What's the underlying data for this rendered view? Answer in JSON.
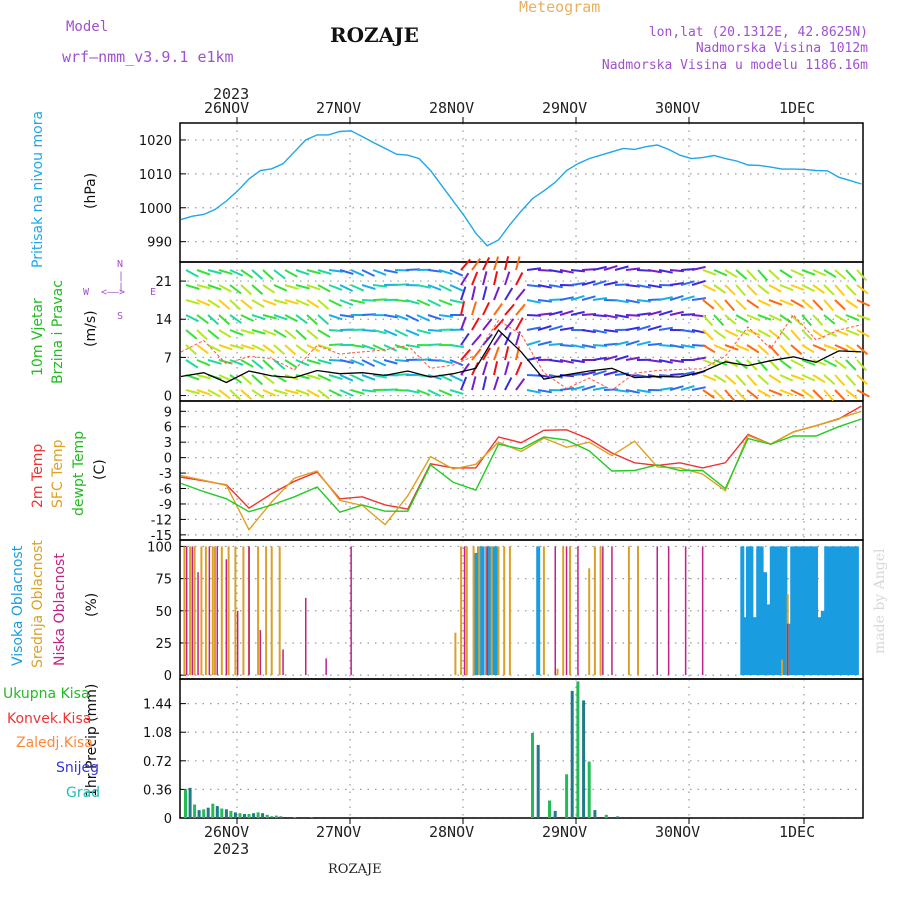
{
  "header": {
    "model_label": "Model",
    "model_name": "wrf–nmm_v3.9.1  e1km",
    "station": "ROZAJE",
    "meteogram": "Meteogram",
    "lonlat": "lon,lat (20.1312E, 42.8625N)",
    "elevation": "Nadmorska Visina 1012m",
    "model_elevation": "Nadmorska Visina u modelu 1186.16m",
    "watermark": "made by Angel",
    "footer": "ROZAJE"
  },
  "time_axis": {
    "year": "2023",
    "days": [
      "26NOV",
      "27NOV",
      "28NOV",
      "29NOV",
      "30NOV",
      "1DEC"
    ]
  },
  "colors": {
    "pressure": "#1ea7e8",
    "temp2m": "#ee3333",
    "sfc": "#e0a020",
    "dewpt": "#22cc22",
    "visoka": "#1a9de0",
    "srednja": "#d9a12a",
    "niska": "#c0208a",
    "wind_avg": "#000000",
    "gust": "#ff5544"
  },
  "labels": {
    "p1": [
      "Pritisak na nivou mora",
      "(hPa)"
    ],
    "p2": [
      "10m Vjetar",
      "Brzina i Pravac",
      "(m/s)"
    ],
    "p2_compass": {
      "n": "N",
      "s": "S",
      "w": "W",
      "e": "E"
    },
    "p3": [
      "2m Temp",
      "SFC Temp",
      "dewpt Temp",
      "(C)"
    ],
    "p4": [
      "Visoka Oblacnost",
      "Srednja Oblacnost",
      "Niska Oblacnost",
      "(%)"
    ],
    "p5_axis": "1hr Precip (mm)",
    "p5_legend": [
      {
        "text": "Ukupna Kisa",
        "color": "#22bb22"
      },
      {
        "text": "Konvek.Kisa",
        "color": "#ee3333"
      },
      {
        "text": "Zaledj.Kisa",
        "color": "#ff8833"
      },
      {
        "text": "Snijeg",
        "color": "#3333dd"
      },
      {
        "text": "Grad",
        "color": "#22bbbb"
      }
    ]
  },
  "chart_data": [
    {
      "type": "line",
      "title": "Pritisak na nivou mora",
      "ylabel": "(hPa)",
      "ylim": [
        984,
        1025
      ],
      "yticks": [
        990,
        1000,
        1010,
        1020
      ],
      "x": [
        0.0,
        0.1,
        0.2,
        0.3,
        0.4,
        0.5,
        0.6,
        0.7,
        0.8,
        0.9,
        1.0,
        1.1,
        1.2,
        1.3,
        1.4,
        1.5,
        1.6,
        1.7,
        1.8,
        1.9,
        2.0,
        2.1,
        2.2,
        2.3,
        2.4,
        2.5,
        2.6,
        2.7,
        2.8,
        2.9,
        3.0,
        3.1,
        3.2,
        3.3,
        3.4,
        3.5,
        3.6,
        3.7,
        3.8,
        3.9,
        4.0,
        4.1,
        4.2,
        4.3,
        4.4,
        4.5,
        4.6,
        4.7,
        4.8,
        4.9,
        5.0,
        5.1,
        5.2,
        5.3,
        5.4,
        5.5,
        5.6,
        5.7,
        5.8,
        5.9,
        6.0
      ],
      "values": [
        996.5,
        997.5,
        998,
        999.5,
        1002,
        1005,
        1008.5,
        1011,
        1011.5,
        1013,
        1016.5,
        1020,
        1021.5,
        1021.5,
        1022.5,
        1022.7,
        1021,
        1019.2,
        1017.5,
        1015.8,
        1015.5,
        1014.5,
        1011,
        1006.5,
        1002,
        997.5,
        992.5,
        988.8,
        990.5,
        995,
        999,
        1002.7,
        1005,
        1007.5,
        1011,
        1013,
        1014.5,
        1015.5,
        1016.5,
        1017.5,
        1017.2,
        1018,
        1018.5,
        1017.2,
        1015.5,
        1014.5,
        1014.8,
        1015.4,
        1014.5,
        1013.8,
        1012.6,
        1012.5,
        1012,
        1011.4,
        1011.4,
        1011.3,
        1011,
        1010.9,
        1009,
        1008,
        1007
      ]
    },
    {
      "type": "line",
      "title": "10m Vjetar Brzina i Pravac",
      "ylabel": "(m/s)",
      "ylim": [
        -1,
        24.5
      ],
      "yticks": [
        0,
        7,
        14,
        21
      ],
      "x": [
        0.0,
        0.2,
        0.4,
        0.6,
        0.8,
        1.0,
        1.2,
        1.4,
        1.6,
        1.8,
        2.0,
        2.2,
        2.4,
        2.6,
        2.8,
        3.0,
        3.2,
        3.4,
        3.6,
        3.8,
        4.0,
        4.2,
        4.4,
        4.6,
        4.8,
        5.0,
        5.2,
        5.4,
        5.6,
        5.8,
        6.0
      ],
      "series": [
        {
          "values": [
            3.5,
            4.2,
            2.4,
            4.5,
            3.6,
            3.3,
            4.6,
            4.0,
            4.2,
            3.7,
            4.5,
            3.4,
            4.0,
            5.0,
            12.0,
            8.0,
            3.0,
            3.8,
            4.5,
            5.0,
            3.3,
            3.5,
            3.4,
            4.4,
            6.2,
            5.5,
            6.4,
            7.1,
            6.1,
            8.2,
            8.0
          ]
        },
        {
          "values": [
            8.0,
            10.1,
            5.8,
            7.2,
            6.8,
            4.7,
            9.2,
            7.6,
            8.0,
            8.4,
            9.2,
            5.0,
            5.6,
            7.4,
            13.8,
            11.2,
            4.2,
            1.3,
            3.2,
            1.0,
            4.1,
            4.6,
            4.8,
            4.9,
            7.2,
            12.6,
            8.6,
            14.8,
            10.2,
            12.0,
            13.0
          ]
        }
      ]
    },
    {
      "type": "line",
      "title": "2m Temp / SFC Temp / dewpt Temp",
      "ylabel": "(C)",
      "ylim": [
        -16,
        11
      ],
      "yticks": [
        -15,
        -12,
        -9,
        -6,
        -3,
        0,
        3,
        6,
        9
      ],
      "x": [
        0.0,
        0.2,
        0.4,
        0.6,
        0.8,
        1.0,
        1.2,
        1.4,
        1.6,
        1.8,
        2.0,
        2.2,
        2.4,
        2.6,
        2.8,
        3.0,
        3.2,
        3.4,
        3.6,
        3.8,
        4.0,
        4.2,
        4.4,
        4.6,
        4.8,
        5.0,
        5.2,
        5.4,
        5.6,
        5.8,
        6.0
      ],
      "series": [
        {
          "name": "2m Temp",
          "values": [
            -3.8,
            -4.5,
            -5.3,
            -9.8,
            -7.0,
            -4.6,
            -2.8,
            -8.0,
            -7.6,
            -9.2,
            -10.0,
            -1.2,
            -2.0,
            -2.0,
            4.0,
            2.9,
            5.3,
            5.4,
            3.6,
            0.9,
            -1.0,
            -1.5,
            -1.0,
            -2.0,
            -1.0,
            4.5,
            2.6,
            5.0,
            6.2,
            7.5,
            10.0
          ]
        },
        {
          "name": "SFC Temp",
          "values": [
            -3.5,
            -4.4,
            -5.4,
            -14.0,
            -8.6,
            -4.0,
            -2.6,
            -8.3,
            -9.3,
            -13.0,
            -7.4,
            0.2,
            -2.2,
            -1.3,
            3.0,
            1.2,
            3.8,
            2.0,
            3.0,
            0.4,
            3.2,
            -1.8,
            -2.0,
            -3.2,
            -6.4,
            4.3,
            2.6,
            5.0,
            6.2,
            7.6,
            9.0
          ]
        },
        {
          "name": "dewpt Temp",
          "values": [
            -5.0,
            -6.6,
            -8.0,
            -10.5,
            -9.2,
            -7.6,
            -5.7,
            -10.6,
            -9.2,
            -10.4,
            -10.4,
            -1.4,
            -4.8,
            -6.3,
            2.6,
            1.7,
            4.0,
            3.4,
            1.3,
            -2.6,
            -2.5,
            -1.4,
            -2.5,
            -2.5,
            -6.0,
            3.7,
            2.6,
            4.2,
            4.2,
            6.0,
            7.5
          ]
        }
      ]
    },
    {
      "type": "bar",
      "title": "Visoka / Srednja / Niska Oblacnost",
      "ylabel": "(%)",
      "ylim": [
        -3,
        105
      ],
      "yticks": [
        0,
        25,
        50,
        75,
        100
      ],
      "series": [
        {
          "name": "Visoka Oblacnost",
          "x": [
            2.6,
            2.63,
            2.66,
            2.72,
            2.75,
            2.78,
            3.15,
            4.95,
            4.98,
            5.0,
            5.03,
            5.06,
            5.09,
            5.12,
            5.15,
            5.18,
            5.21,
            5.24,
            5.27,
            5.3,
            5.33,
            5.36,
            5.39,
            5.42,
            5.45,
            5.48,
            5.51,
            5.54,
            5.57,
            5.6,
            5.63,
            5.66,
            5.69,
            5.72,
            5.75,
            5.78,
            5.81,
            5.84,
            5.87,
            5.9,
            5.93,
            5.96
          ],
          "values": [
            95,
            100,
            100,
            100,
            100,
            100,
            100,
            100,
            45,
            100,
            100,
            45,
            100,
            100,
            80,
            55,
            100,
            100,
            100,
            100,
            100,
            40,
            100,
            100,
            100,
            100,
            100,
            100,
            100,
            100,
            45,
            50,
            100,
            100,
            100,
            100,
            100,
            100,
            100,
            100,
            100,
            100
          ]
        },
        {
          "name": "Srednja Oblacnost",
          "x": [
            0.03,
            0.08,
            0.12,
            0.18,
            0.22,
            0.28,
            0.3,
            0.36,
            0.42,
            0.48,
            0.55,
            0.6,
            0.68,
            0.75,
            0.8,
            0.87,
            2.42,
            2.47,
            2.52,
            2.58,
            2.63,
            2.69,
            2.74,
            2.8,
            2.85,
            2.9,
            3.2,
            3.32,
            3.37,
            3.43,
            3.6,
            3.65,
            3.7,
            3.95,
            4.03,
            5.3,
            5.35
          ],
          "values": [
            100,
            100,
            100,
            100,
            100,
            100,
            100,
            100,
            100,
            100,
            100,
            100,
            100,
            100,
            100,
            100,
            33,
            100,
            100,
            100,
            100,
            100,
            100,
            100,
            100,
            100,
            100,
            5,
            100,
            100,
            83,
            100,
            100,
            100,
            100,
            12,
            63
          ]
        },
        {
          "name": "Niska Oblacnost",
          "x": [
            0.05,
            0.1,
            0.15,
            0.25,
            0.32,
            0.4,
            0.5,
            0.6,
            0.7,
            0.9,
            1.1,
            1.28,
            1.5,
            2.5,
            2.7,
            3.3,
            3.4,
            3.5,
            3.72,
            3.8,
            4.2,
            4.3,
            4.45,
            4.6,
            5.35
          ],
          "values": [
            100,
            100,
            80,
            100,
            100,
            90,
            50,
            100,
            35,
            20,
            60,
            13,
            100,
            100,
            100,
            100,
            100,
            100,
            100,
            100,
            100,
            100,
            100,
            100,
            40
          ]
        }
      ]
    },
    {
      "type": "bar",
      "title": "1hr Precip",
      "ylabel": "1hr Precip (mm)",
      "ylim": [
        0,
        1.75
      ],
      "yticks": [
        0,
        0.36,
        0.72,
        1.08,
        1.44
      ],
      "x": [
        0.04,
        0.08,
        0.12,
        0.16,
        0.2,
        0.24,
        0.28,
        0.32,
        0.36,
        0.4,
        0.44,
        0.48,
        0.52,
        0.56,
        0.6,
        0.64,
        0.68,
        0.72,
        0.76,
        0.8,
        0.84,
        0.88,
        1.0,
        1.15,
        3.1,
        3.15,
        3.25,
        3.3,
        3.4,
        3.45,
        3.5,
        3.55,
        3.6,
        3.65,
        3.75,
        3.85
      ],
      "values": [
        0.36,
        0.38,
        0.17,
        0.1,
        0.11,
        0.13,
        0.18,
        0.15,
        0.12,
        0.11,
        0.09,
        0.07,
        0.06,
        0.05,
        0.05,
        0.06,
        0.07,
        0.06,
        0.04,
        0.02,
        0.03,
        0.02,
        0.01,
        0.01,
        1.07,
        0.92,
        0.22,
        0.09,
        0.55,
        1.6,
        1.72,
        1.48,
        0.71,
        0.1,
        0.04,
        0.02
      ]
    }
  ]
}
